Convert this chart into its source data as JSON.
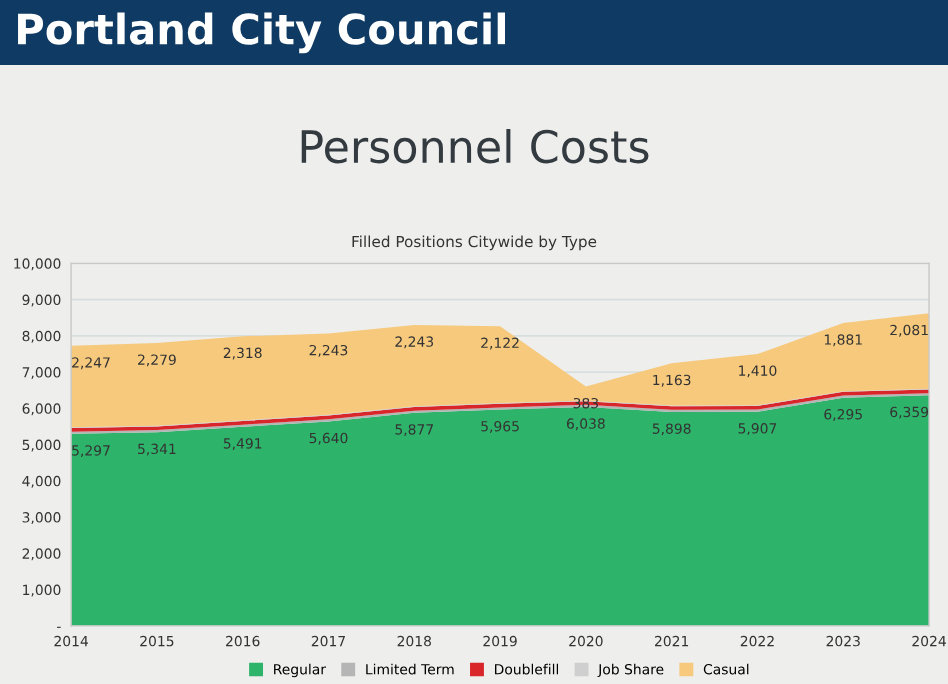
{
  "chart_data": {
    "type": "area",
    "stacked": true,
    "title": "Personnel Costs",
    "subtitle": "Filled Positions Citywide by Type",
    "annotations": [
      "Portland City Council"
    ],
    "x": [
      2014,
      2015,
      2016,
      2017,
      2018,
      2019,
      2020,
      2021,
      2022,
      2023,
      2024
    ],
    "xlim": [
      2014,
      2024
    ],
    "xticks": [
      2014,
      2015,
      2016,
      2017,
      2018,
      2019,
      2020,
      2021,
      2022,
      2023,
      2024
    ],
    "ylim": [
      0,
      10000
    ],
    "yticks": [
      {
        "value": 0,
        "label": "-"
      },
      {
        "value": 1000,
        "label": "1,000"
      },
      {
        "value": 2000,
        "label": "2,000"
      },
      {
        "value": 3000,
        "label": "3,000"
      },
      {
        "value": 4000,
        "label": "4,000"
      },
      {
        "value": 5000,
        "label": "5,000"
      },
      {
        "value": 6000,
        "label": "6,000"
      },
      {
        "value": 7000,
        "label": "7,000"
      },
      {
        "value": 8000,
        "label": "8,000"
      },
      {
        "value": 9000,
        "label": "9,000"
      },
      {
        "value": 10000,
        "label": "10,000"
      }
    ],
    "grid": "y",
    "legend": "bottom",
    "series": [
      {
        "name": "Regular",
        "color": "#2eb46a",
        "values": [
          5297,
          5341,
          5491,
          5640,
          5877,
          5965,
          6038,
          5898,
          5907,
          6295,
          6359
        ],
        "value_labels": [
          "5,297",
          "5,341",
          "5,491",
          "5,640",
          "5,877",
          "5,965",
          "6,038",
          "5,898",
          "5,907",
          "6,295",
          "6,359"
        ]
      },
      {
        "name": "Limited Term",
        "color": "#b5b5b5",
        "values": [
          60,
          60,
          60,
          60,
          60,
          60,
          60,
          60,
          60,
          60,
          60
        ]
      },
      {
        "name": "Doublefill",
        "color": "#d9262b",
        "values": [
          100,
          100,
          100,
          100,
          100,
          100,
          100,
          100,
          100,
          100,
          100
        ]
      },
      {
        "name": "Job Share",
        "color": "#cfcfcf",
        "values": [
          20,
          20,
          20,
          20,
          20,
          20,
          20,
          20,
          20,
          20,
          20
        ]
      },
      {
        "name": "Casual",
        "color": "#f6c97c",
        "values": [
          2247,
          2279,
          2318,
          2243,
          2243,
          2122,
          383,
          1163,
          1410,
          1881,
          2081
        ],
        "value_labels": [
          "2,247",
          "2,279",
          "2,318",
          "2,243",
          "2,243",
          "2,122",
          "383",
          "1,163",
          "1,410",
          "1,881",
          "2,081"
        ]
      }
    ]
  }
}
